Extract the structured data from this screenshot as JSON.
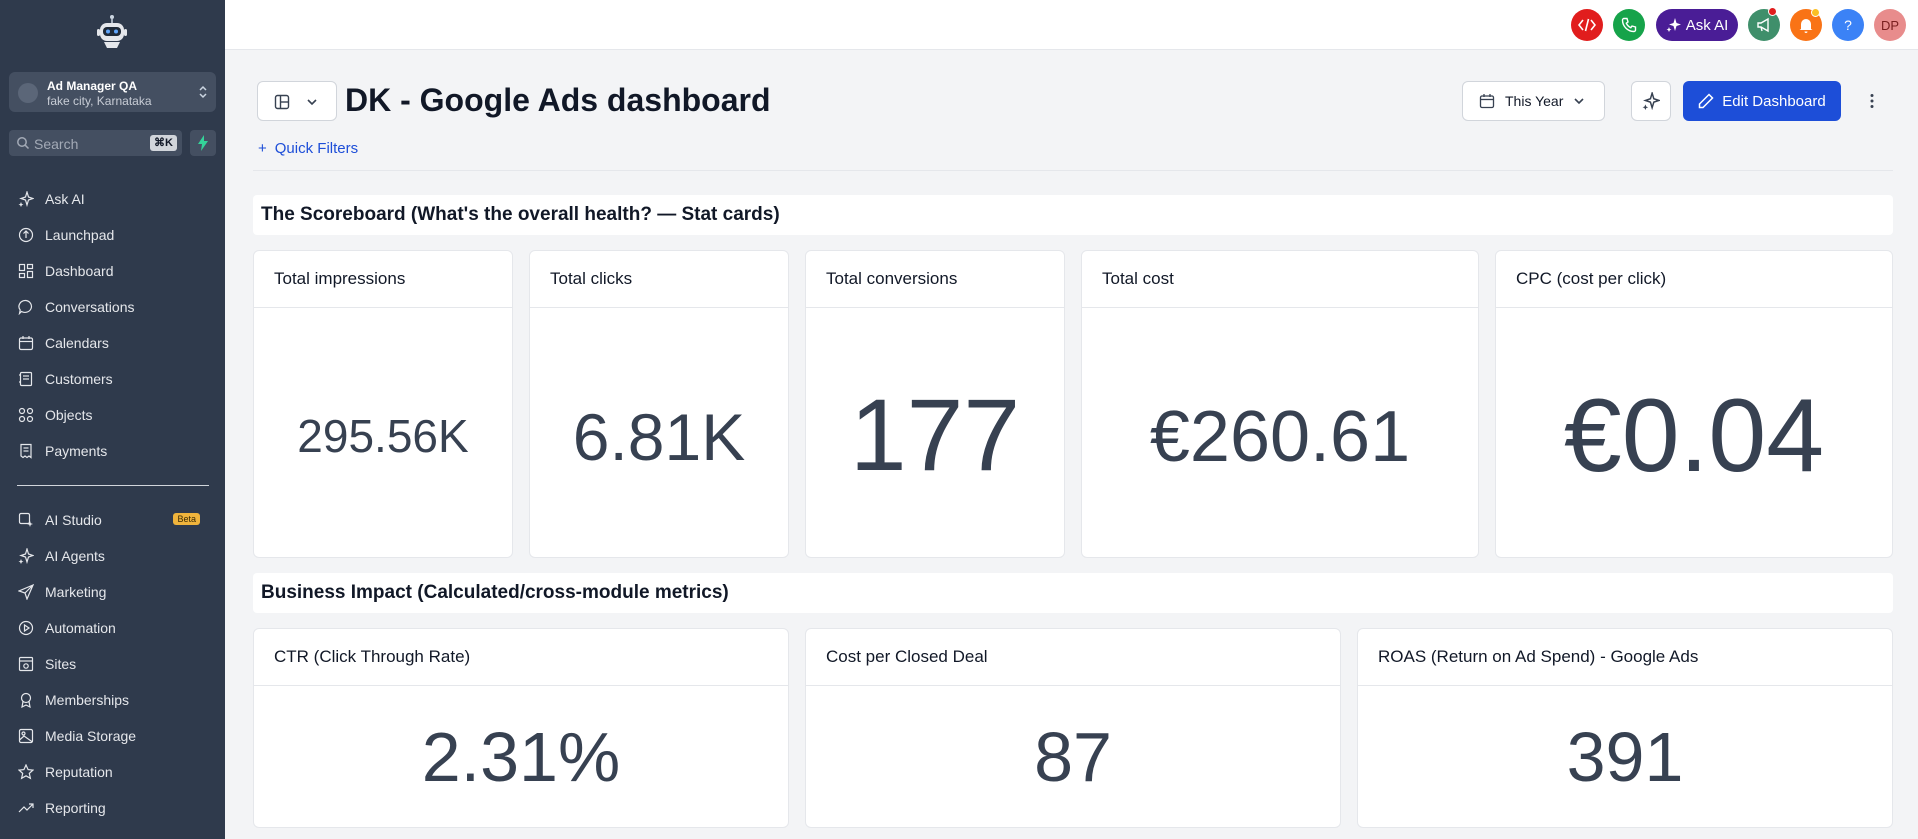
{
  "sidebar": {
    "account": {
      "name": "Ad Manager QA",
      "location": "fake city, Karnataka"
    },
    "search": {
      "placeholder": "Search",
      "shortcut": "⌘K"
    },
    "items": [
      {
        "label": "Ask AI",
        "icon": "sparkle-icon"
      },
      {
        "label": "Launchpad",
        "icon": "rocket-icon"
      },
      {
        "label": "Dashboard",
        "icon": "grid-icon"
      },
      {
        "label": "Conversations",
        "icon": "chat-bubble-icon"
      },
      {
        "label": "Calendars",
        "icon": "calendar-icon"
      },
      {
        "label": "Customers",
        "icon": "contacts-icon"
      },
      {
        "label": "Objects",
        "icon": "objects-icon"
      },
      {
        "label": "Payments",
        "icon": "receipt-icon"
      }
    ],
    "items2": [
      {
        "label": "AI Studio",
        "icon": "ai-studio-icon",
        "badge": "Beta"
      },
      {
        "label": "AI Agents",
        "icon": "sparkle-icon"
      },
      {
        "label": "Marketing",
        "icon": "send-icon"
      },
      {
        "label": "Automation",
        "icon": "automation-icon"
      },
      {
        "label": "Sites",
        "icon": "sites-icon"
      },
      {
        "label": "Memberships",
        "icon": "award-icon"
      },
      {
        "label": "Media Storage",
        "icon": "image-icon"
      },
      {
        "label": "Reputation",
        "icon": "star-icon"
      },
      {
        "label": "Reporting",
        "icon": "trend-icon"
      }
    ]
  },
  "topbar": {
    "ask_ai_label": "Ask AI",
    "help_label": "?",
    "avatar_initials": "DP",
    "colors": {
      "code": "#e11d1d",
      "phone": "#16a34a",
      "ask_ai": "#4a1d96",
      "announce": "#3f8f6b",
      "bell": "#f97316",
      "help": "#3b82f6",
      "avatar": "#e88c8c"
    }
  },
  "header": {
    "title": "DK - Google Ads dashboard",
    "quick_filters": "Quick Filters",
    "date_range": "This Year",
    "edit_label": "Edit Dashboard"
  },
  "sections": [
    {
      "title": "The Scoreboard (What's the overall health? — Stat cards)",
      "cards": [
        {
          "title": "Total impressions",
          "value": "295.56K"
        },
        {
          "title": "Total clicks",
          "value": "6.81K"
        },
        {
          "title": "Total conversions",
          "value": "177"
        },
        {
          "title": "Total cost",
          "value": "€260.61"
        },
        {
          "title": "CPC (cost per click)",
          "value": "€0.04"
        }
      ]
    },
    {
      "title": "Business Impact (Calculated/cross-module metrics)",
      "cards": [
        {
          "title": "CTR (Click Through Rate)",
          "value": "2.31%"
        },
        {
          "title": "Cost per Closed Deal",
          "value": "87"
        },
        {
          "title": "ROAS (Return on Ad Spend) - Google Ads",
          "value": "391"
        }
      ]
    }
  ]
}
